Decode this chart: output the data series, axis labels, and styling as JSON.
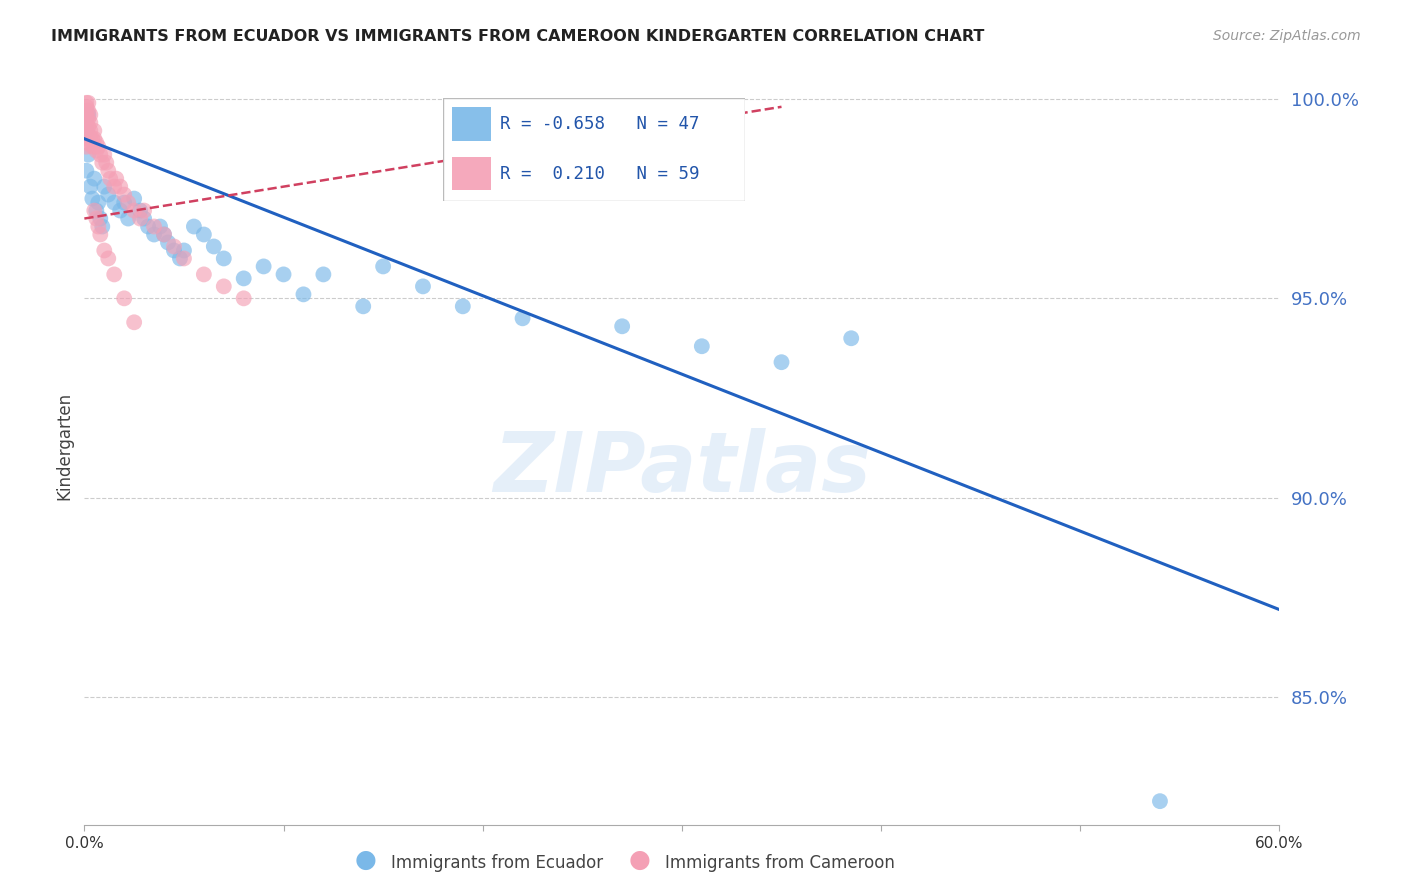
{
  "title": "IMMIGRANTS FROM ECUADOR VS IMMIGRANTS FROM CAMEROON KINDERGARTEN CORRELATION CHART",
  "source": "Source: ZipAtlas.com",
  "ylabel": "Kindergarten",
  "x_min": 0.0,
  "x_max": 0.6,
  "y_min": 0.818,
  "y_max": 1.008,
  "yticks": [
    0.85,
    0.9,
    0.95,
    1.0
  ],
  "ytick_labels": [
    "85.0%",
    "90.0%",
    "95.0%",
    "100.0%"
  ],
  "xticks": [
    0.0,
    0.1,
    0.2,
    0.3,
    0.4,
    0.5,
    0.6
  ],
  "xtick_labels": [
    "0.0%",
    "",
    "",
    "",
    "",
    "",
    "60.0%"
  ],
  "ecuador_color": "#7ab8e8",
  "cameroon_color": "#f4a0b5",
  "ecuador_line_color": "#2060c0",
  "cameroon_line_color": "#d04060",
  "legend_label_ecuador": "Immigrants from Ecuador",
  "legend_label_cameroon": "Immigrants from Cameroon",
  "watermark": "ZIPatlas",
  "ecuador_x": [
    0.001,
    0.001,
    0.002,
    0.003,
    0.004,
    0.005,
    0.006,
    0.007,
    0.008,
    0.009,
    0.01,
    0.012,
    0.015,
    0.018,
    0.02,
    0.022,
    0.025,
    0.028,
    0.03,
    0.032,
    0.035,
    0.038,
    0.04,
    0.042,
    0.045,
    0.048,
    0.05,
    0.055,
    0.06,
    0.065,
    0.07,
    0.08,
    0.09,
    0.1,
    0.11,
    0.12,
    0.14,
    0.15,
    0.17,
    0.19,
    0.22,
    0.27,
    0.31,
    0.35,
    0.385,
    0.54,
    0.002
  ],
  "ecuador_y": [
    0.992,
    0.982,
    0.986,
    0.978,
    0.975,
    0.98,
    0.972,
    0.974,
    0.97,
    0.968,
    0.978,
    0.976,
    0.974,
    0.972,
    0.974,
    0.97,
    0.975,
    0.972,
    0.97,
    0.968,
    0.966,
    0.968,
    0.966,
    0.964,
    0.962,
    0.96,
    0.962,
    0.968,
    0.966,
    0.963,
    0.96,
    0.955,
    0.958,
    0.956,
    0.951,
    0.956,
    0.948,
    0.958,
    0.953,
    0.948,
    0.945,
    0.943,
    0.938,
    0.934,
    0.94,
    0.824,
    0.996
  ],
  "cameroon_x": [
    0.001,
    0.001,
    0.001,
    0.001,
    0.001,
    0.001,
    0.001,
    0.001,
    0.001,
    0.001,
    0.001,
    0.001,
    0.002,
    0.002,
    0.002,
    0.002,
    0.002,
    0.003,
    0.003,
    0.003,
    0.003,
    0.004,
    0.004,
    0.005,
    0.005,
    0.005,
    0.006,
    0.006,
    0.007,
    0.008,
    0.009,
    0.01,
    0.011,
    0.012,
    0.013,
    0.015,
    0.016,
    0.018,
    0.02,
    0.022,
    0.025,
    0.028,
    0.03,
    0.035,
    0.04,
    0.045,
    0.05,
    0.06,
    0.07,
    0.08,
    0.005,
    0.006,
    0.007,
    0.008,
    0.01,
    0.012,
    0.015,
    0.02,
    0.025
  ],
  "cameroon_y": [
    0.999,
    0.998,
    0.997,
    0.996,
    0.995,
    0.994,
    0.993,
    0.992,
    0.991,
    0.99,
    0.989,
    0.988,
    0.999,
    0.997,
    0.995,
    0.993,
    0.991,
    0.996,
    0.994,
    0.992,
    0.99,
    0.99,
    0.988,
    0.992,
    0.99,
    0.988,
    0.989,
    0.987,
    0.988,
    0.986,
    0.984,
    0.986,
    0.984,
    0.982,
    0.98,
    0.978,
    0.98,
    0.978,
    0.976,
    0.974,
    0.972,
    0.97,
    0.972,
    0.968,
    0.966,
    0.963,
    0.96,
    0.956,
    0.953,
    0.95,
    0.972,
    0.97,
    0.968,
    0.966,
    0.962,
    0.96,
    0.956,
    0.95,
    0.944
  ],
  "ecuador_line_x0": 0.0,
  "ecuador_line_y0": 0.99,
  "ecuador_line_x1": 0.6,
  "ecuador_line_y1": 0.872,
  "cameroon_line_x0": 0.0,
  "cameroon_line_y0": 0.97,
  "cameroon_line_x1": 0.35,
  "cameroon_line_y1": 0.998
}
